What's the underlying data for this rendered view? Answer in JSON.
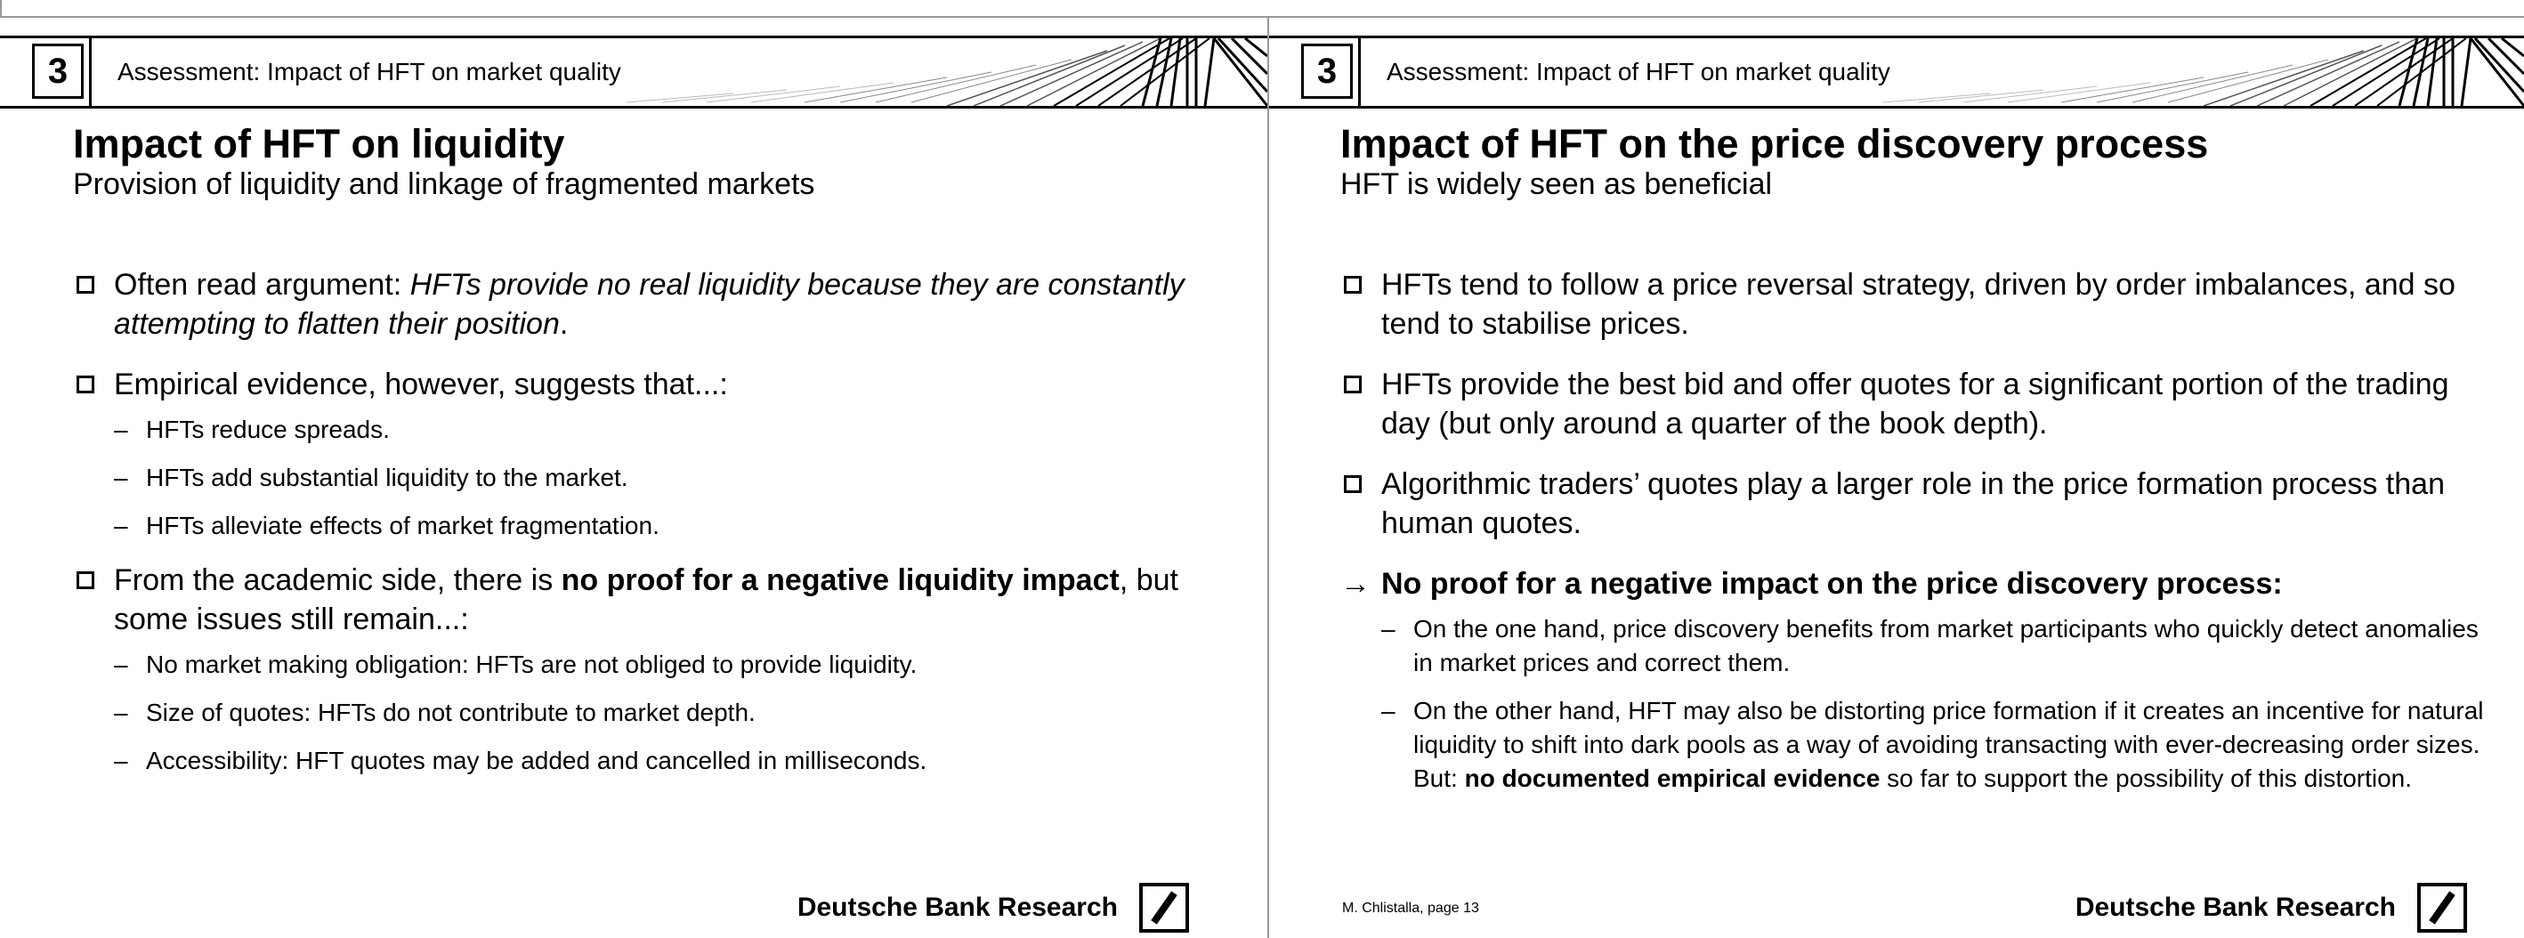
{
  "header": {
    "chapter_number": "3",
    "section_title": "Assessment: Impact of HFT on market quality"
  },
  "left_slide": {
    "title": "Impact of HFT on liquidity",
    "subtitle": "Provision of liquidity and linkage of fragmented markets",
    "b1": {
      "prefix": "Often read argument: ",
      "italic": "HFTs provide no real liquidity because they are constantly attempting to flatten their position",
      "suffix": "."
    },
    "b2": {
      "text": "Empirical evidence, however, suggests that...:",
      "subs": [
        "HFTs reduce spreads.",
        "HFTs add substantial liquidity to the market.",
        "HFTs alleviate effects of market fragmentation."
      ]
    },
    "b3": {
      "prefix": "From the academic side, there is ",
      "bold": "no proof for a negative liquidity impact",
      "suffix": ", but some issues still remain...:",
      "subs": [
        "No market making obligation: HFTs are not obliged to provide liquidity.",
        "Size of quotes: HFTs do not contribute to market depth.",
        "Accessibility: HFT quotes may be added and cancelled in milliseconds."
      ]
    },
    "brand": "Deutsche Bank Research"
  },
  "right_slide": {
    "title": "Impact of HFT on the price discovery process",
    "subtitle": "HFT is widely seen as beneficial",
    "bullets": [
      "HFTs tend to follow a price reversal strategy, driven by order imbalances, and so tend to stabilise prices.",
      "HFTs provide the best bid and offer quotes for a significant portion of the trading day (but only around a quarter of the book depth).",
      "Algorithmic traders’ quotes play a larger role in the price formation process than human quotes."
    ],
    "conclusion": {
      "arrow": "→",
      "text": "No proof for a negative impact on the price discovery process:",
      "sub1": "On the one hand, price discovery benefits from market participants who quickly detect anomalies in market prices and correct them.",
      "sub2_prefix": "On the other hand, HFT may also be distorting price formation if it creates an incentive for natural liquidity to shift into dark pools as a way of avoiding transacting with ever-decreasing order sizes. But: ",
      "sub2_bold": "no documented empirical evidence",
      "sub2_suffix": " so far to support the possibility of this distortion."
    },
    "page_ref": "M. Chlistalla, page 13",
    "brand": "Deutsche Bank Research"
  }
}
